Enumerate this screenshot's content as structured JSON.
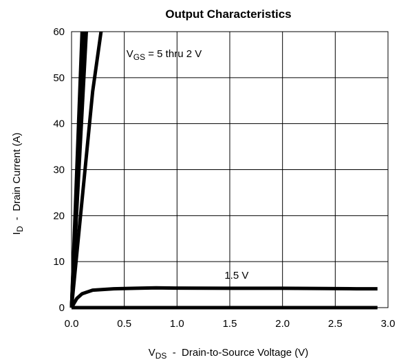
{
  "chart_data": {
    "type": "line",
    "title": "Output Characteristics",
    "xlabel": {
      "main": "V",
      "sub": "DS",
      "rest": "  -  Drain-to-Source Voltage (V)"
    },
    "ylabel": {
      "main": "I",
      "sub": "D",
      "rest": "  -  Drain Current (A)"
    },
    "xlim": [
      0.0,
      3.0
    ],
    "ylim": [
      0,
      60
    ],
    "xticks": [
      "0.0",
      "0.5",
      "1.0",
      "1.5",
      "2.0",
      "2.5",
      "3.0"
    ],
    "yticks": [
      "0",
      "10",
      "20",
      "30",
      "40",
      "50",
      "60"
    ],
    "grid": true,
    "annotations": [
      {
        "id": "vgs",
        "main": "V",
        "sub": "GS",
        "rest": " = 5 thru 2 V",
        "at": [
          0.52,
          54.5
        ]
      },
      {
        "id": "v15",
        "main": "1.5 V",
        "sub": "",
        "rest": "",
        "at": [
          1.45,
          6.3
        ]
      }
    ],
    "series": [
      {
        "values": [
          [
            0,
            0
          ],
          [
            0.1,
            60
          ]
        ]
      },
      {
        "values": [
          [
            0,
            0
          ],
          [
            0.11,
            60
          ]
        ]
      },
      {
        "values": [
          [
            0,
            0
          ],
          [
            0.12,
            60
          ]
        ]
      },
      {
        "values": [
          [
            0,
            0
          ],
          [
            0.14,
            60
          ]
        ]
      },
      {
        "values": [
          [
            0,
            0
          ],
          [
            0.2,
            47
          ],
          [
            0.28,
            60
          ]
        ]
      },
      {
        "values": [
          [
            0,
            0
          ],
          [
            0.05,
            2.0
          ],
          [
            0.1,
            3.0
          ],
          [
            0.2,
            3.8
          ],
          [
            0.4,
            4.1
          ],
          [
            0.6,
            4.2
          ],
          [
            0.8,
            4.3
          ],
          [
            1.0,
            4.25
          ],
          [
            1.5,
            4.2
          ],
          [
            2.0,
            4.2
          ],
          [
            2.4,
            4.15
          ],
          [
            2.7,
            4.1
          ],
          [
            2.9,
            4.1
          ]
        ]
      },
      {
        "values": [
          [
            0,
            0
          ],
          [
            2.9,
            0
          ]
        ]
      }
    ]
  }
}
